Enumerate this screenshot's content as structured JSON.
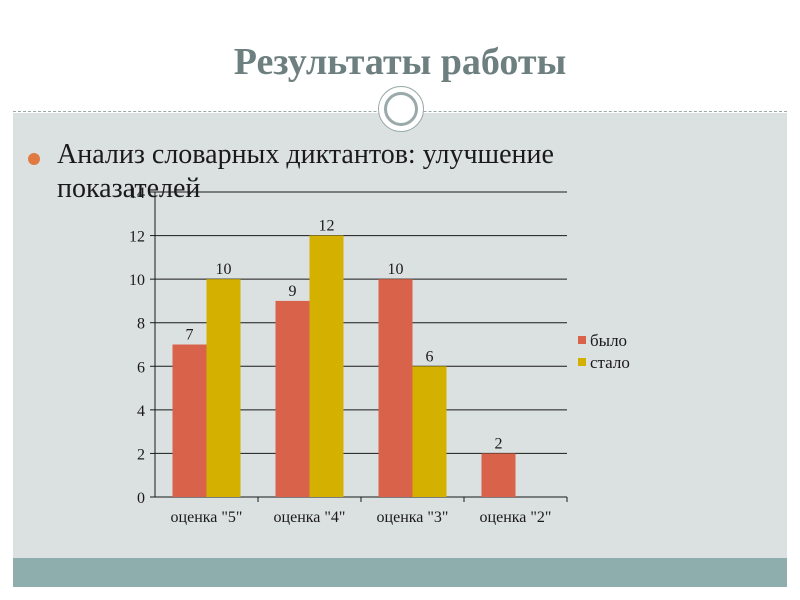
{
  "slide": {
    "title": "Результаты работы",
    "bullet_text": "Анализ словарных диктантов: улучшение показателей"
  },
  "colors": {
    "title": "#6e7f80",
    "body_background": "#dbe0e0",
    "footer_band": "#8eadad",
    "bullet": "#e07a42",
    "series_before": "#d9634a",
    "series_after": "#d4b100"
  },
  "icons": {
    "ornament": "circle-ornament-icon",
    "bullet": "bullet-dot-icon"
  },
  "chart_data": {
    "type": "bar",
    "categories": [
      "оценка \"5\"",
      "оценка \"4\"",
      "оценка \"3\"",
      "оценка \"2\""
    ],
    "series": [
      {
        "name": "было",
        "values": [
          7,
          9,
          10,
          2
        ],
        "color": "#d9634a"
      },
      {
        "name": "стало",
        "values": [
          10,
          12,
          6,
          null
        ],
        "color": "#d4b100"
      }
    ],
    "data_labels": [
      [
        "7",
        "9",
        "10",
        "2"
      ],
      [
        "10",
        "12",
        "6",
        ""
      ]
    ],
    "ylim": [
      0,
      14
    ],
    "yticks": [
      0,
      2,
      4,
      6,
      8,
      10,
      12,
      14
    ],
    "ytick_labels": [
      "0",
      "2",
      "4",
      "6",
      "8",
      "10",
      "12",
      "14"
    ],
    "grid": true,
    "legend_position": "right"
  }
}
